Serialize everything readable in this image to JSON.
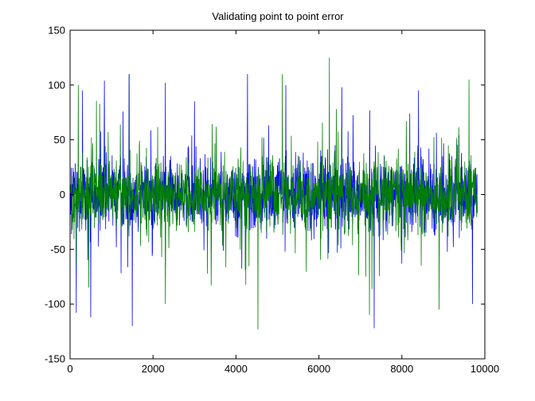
{
  "chart_data": {
    "type": "line",
    "title": "Validating point to point error",
    "xlabel": "",
    "ylabel": "",
    "xlim": [
      0,
      10000
    ],
    "ylim": [
      -150,
      150
    ],
    "xticks": [
      0,
      2000,
      4000,
      6000,
      8000,
      10000
    ],
    "yticks": [
      -150,
      -100,
      -50,
      0,
      50,
      100,
      150
    ],
    "grid": false,
    "x_extent": [
      0,
      9820
    ],
    "series": [
      {
        "color": "#0000ff",
        "description_points": [
          {
            "x": 0,
            "y": 0
          },
          {
            "x": 150,
            "y": -108
          },
          {
            "x": 300,
            "y": 95
          },
          {
            "x": 500,
            "y": -112
          },
          {
            "x": 830,
            "y": 104
          },
          {
            "x": 1420,
            "y": 110
          },
          {
            "x": 1500,
            "y": -120
          },
          {
            "x": 2300,
            "y": 102
          },
          {
            "x": 3000,
            "y": 85
          },
          {
            "x": 4280,
            "y": 110
          },
          {
            "x": 5200,
            "y": 100
          },
          {
            "x": 6550,
            "y": 98
          },
          {
            "x": 7330,
            "y": -122
          },
          {
            "x": 8400,
            "y": 95
          },
          {
            "x": 9700,
            "y": -100
          },
          {
            "x": 9820,
            "y": 0
          }
        ]
      },
      {
        "color": "#008000",
        "description_points": [
          {
            "x": 0,
            "y": 0
          },
          {
            "x": 200,
            "y": 100
          },
          {
            "x": 450,
            "y": -85
          },
          {
            "x": 1430,
            "y": 110
          },
          {
            "x": 2300,
            "y": -100
          },
          {
            "x": 4530,
            "y": -123
          },
          {
            "x": 5120,
            "y": 110
          },
          {
            "x": 6250,
            "y": 125
          },
          {
            "x": 7220,
            "y": -110
          },
          {
            "x": 8900,
            "y": -105
          },
          {
            "x": 9620,
            "y": 105
          },
          {
            "x": 9820,
            "y": 0
          }
        ]
      }
    ]
  }
}
